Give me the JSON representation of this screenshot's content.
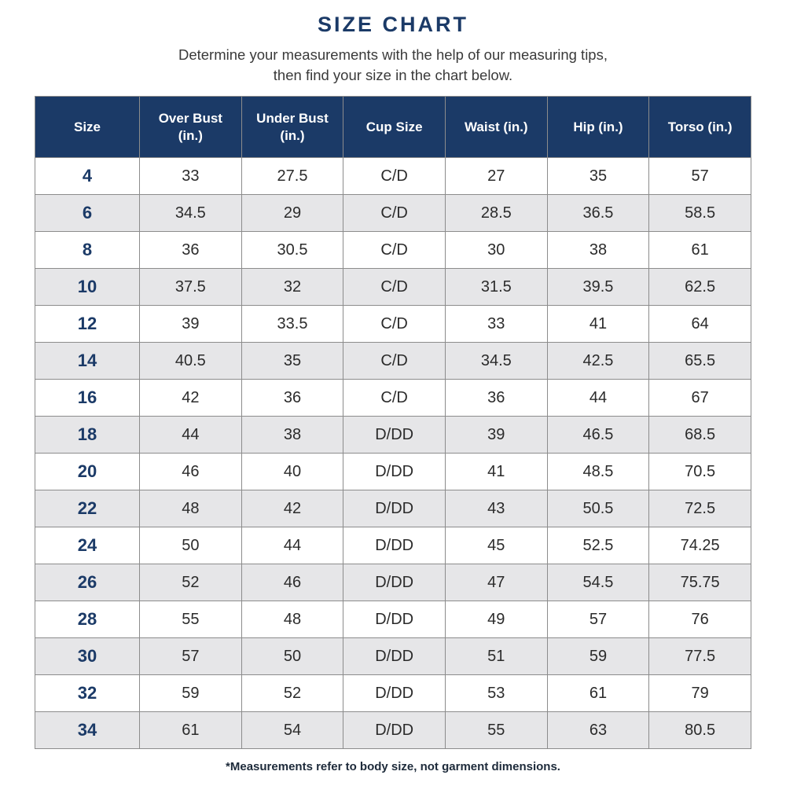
{
  "page": {
    "title": "SIZE CHART",
    "subtitle_line1": "Determine your measurements with the help of our measuring tips,",
    "subtitle_line2": "then find your size in the chart below.",
    "footnote": "*Measurements refer to body size, not garment dimensions."
  },
  "colors": {
    "header_bg": "#1b3a67",
    "header_text": "#ffffff",
    "title_text": "#1b3a67",
    "row_alt_bg": "#e6e6e8",
    "row_bg": "#ffffff",
    "border": "#8c8c8c",
    "size_column_text": "#1b3a67",
    "body_text": "#2b2b2b"
  },
  "chart_data": {
    "type": "table",
    "title": "SIZE CHART",
    "columns": [
      "Size",
      "Over Bust (in.)",
      "Under Bust (in.)",
      "Cup Size",
      "Waist (in.)",
      "Hip (in.)",
      "Torso (in.)"
    ],
    "rows": [
      [
        "4",
        "33",
        "27.5",
        "C/D",
        "27",
        "35",
        "57"
      ],
      [
        "6",
        "34.5",
        "29",
        "C/D",
        "28.5",
        "36.5",
        "58.5"
      ],
      [
        "8",
        "36",
        "30.5",
        "C/D",
        "30",
        "38",
        "61"
      ],
      [
        "10",
        "37.5",
        "32",
        "C/D",
        "31.5",
        "39.5",
        "62.5"
      ],
      [
        "12",
        "39",
        "33.5",
        "C/D",
        "33",
        "41",
        "64"
      ],
      [
        "14",
        "40.5",
        "35",
        "C/D",
        "34.5",
        "42.5",
        "65.5"
      ],
      [
        "16",
        "42",
        "36",
        "C/D",
        "36",
        "44",
        "67"
      ],
      [
        "18",
        "44",
        "38",
        "D/DD",
        "39",
        "46.5",
        "68.5"
      ],
      [
        "20",
        "46",
        "40",
        "D/DD",
        "41",
        "48.5",
        "70.5"
      ],
      [
        "22",
        "48",
        "42",
        "D/DD",
        "43",
        "50.5",
        "72.5"
      ],
      [
        "24",
        "50",
        "44",
        "D/DD",
        "45",
        "52.5",
        "74.25"
      ],
      [
        "26",
        "52",
        "46",
        "D/DD",
        "47",
        "54.5",
        "75.75"
      ],
      [
        "28",
        "55",
        "48",
        "D/DD",
        "49",
        "57",
        "76"
      ],
      [
        "30",
        "57",
        "50",
        "D/DD",
        "51",
        "59",
        "77.5"
      ],
      [
        "32",
        "59",
        "52",
        "D/DD",
        "53",
        "61",
        "79"
      ],
      [
        "34",
        "61",
        "54",
        "D/DD",
        "55",
        "63",
        "80.5"
      ]
    ]
  }
}
